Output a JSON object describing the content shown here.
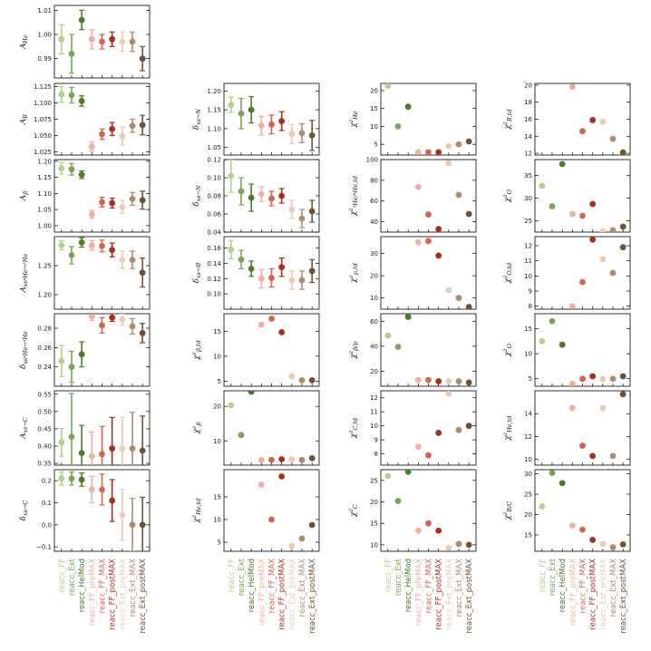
{
  "palette": [
    "#b5cf8e",
    "#7ea35a",
    "#4d7a2b",
    "#ebb1a3",
    "#d16452",
    "#a82e22",
    "#e6cdb4",
    "#ad8c6e",
    "#6e5238"
  ],
  "categories": [
    "reacc_FF",
    "reacc_Ext",
    "reacc_HelMod",
    "reacc_FF_preMAX",
    "reacc_FF_MAX",
    "reacc_FF_postMAX",
    "reacc_Ext_preMAX",
    "reacc_Ext_MAX",
    "reacc_Ext_postMAX"
  ],
  "chart_data": [
    {
      "type": "scatter",
      "ylabel": "A_{He}",
      "ylim": [
        0.982,
        1.012
      ],
      "yticks": [
        0.99,
        1.0,
        1.01
      ],
      "yticklabels": [
        "0.99",
        "1.00",
        "1.01"
      ],
      "values": [
        0.998,
        0.992,
        1.006,
        0.998,
        0.997,
        0.998,
        0.997,
        0.997,
        0.99
      ],
      "errors": [
        0.006,
        0.008,
        0.004,
        0.004,
        0.003,
        0.003,
        0.004,
        0.004,
        0.005
      ]
    },
    {
      "type": "scatter",
      "ylabel": "A_{B}",
      "ylim": [
        1.02,
        1.13
      ],
      "yticks": [
        1.025,
        1.05,
        1.075,
        1.1,
        1.125
      ],
      "yticklabels": [
        "1.025",
        "1.050",
        "1.075",
        "1.100",
        "1.125"
      ],
      "values": [
        1.113,
        1.112,
        1.103,
        1.033,
        1.052,
        1.06,
        1.049,
        1.065,
        1.066
      ],
      "errors": [
        0.012,
        0.012,
        0.008,
        0.007,
        0.008,
        0.01,
        0.014,
        0.01,
        0.015
      ]
    },
    {
      "type": "scatter",
      "ylabel": "A_{p̄}",
      "ylim": [
        0.98,
        1.205
      ],
      "yticks": [
        1.0,
        1.05,
        1.1,
        1.15,
        1.2
      ],
      "yticklabels": [
        "1.00",
        "1.05",
        "1.10",
        "1.15",
        "1.20"
      ],
      "values": [
        1.178,
        1.175,
        1.158,
        1.035,
        1.073,
        1.07,
        1.058,
        1.083,
        1.079
      ],
      "errors": [
        0.018,
        0.018,
        0.012,
        0.012,
        0.015,
        0.015,
        0.02,
        0.02,
        0.028
      ]
    },
    {
      "type": "scatter",
      "ylabel": "A_{xs⁴He→³He}",
      "ylim": [
        1.175,
        1.3
      ],
      "yticks": [
        1.2,
        1.25
      ],
      "yticklabels": [
        "1.20",
        "1.25"
      ],
      "values": [
        1.285,
        1.268,
        1.29,
        1.285,
        1.284,
        1.277,
        1.26,
        1.26,
        1.238
      ],
      "errors": [
        0.008,
        0.015,
        0.008,
        0.008,
        0.01,
        0.012,
        0.015,
        0.015,
        0.025
      ]
    },
    {
      "type": "scatter",
      "ylabel": "δ_{xs⁴He→³He}",
      "ylim": [
        0.22,
        0.295
      ],
      "yticks": [
        0.24,
        0.26,
        0.28
      ],
      "yticklabels": [
        "0.24",
        "0.26",
        "0.28"
      ],
      "values": [
        0.246,
        0.24,
        0.253,
        0.292,
        0.283,
        0.291,
        0.289,
        0.282,
        0.275
      ],
      "errors": [
        0.016,
        0.016,
        0.013,
        0.004,
        0.008,
        0.004,
        0.006,
        0.008,
        0.01
      ]
    },
    {
      "type": "scatter",
      "ylabel": "A_{xs→C}",
      "ylim": [
        0.345,
        0.56
      ],
      "yticks": [
        0.35,
        0.4,
        0.45,
        0.5,
        0.55
      ],
      "yticklabels": [
        "0.35",
        "0.40",
        "0.45",
        "0.50",
        "0.55"
      ],
      "values": [
        0.411,
        0.427,
        0.38,
        0.371,
        0.377,
        0.393,
        0.393,
        0.393,
        0.387
      ],
      "errors": [
        0.04,
        0.125,
        0.08,
        0.07,
        0.08,
        0.09,
        0.09,
        0.105,
        0.1
      ]
    },
    {
      "type": "scatter",
      "ylabel": "δ_{xs→C}",
      "ylim": [
        -0.12,
        0.25
      ],
      "yticks": [
        -0.1,
        0.0,
        0.1,
        0.2
      ],
      "yticklabels": [
        "−0.1",
        "0.0",
        "0.1",
        "0.2"
      ],
      "values": [
        0.21,
        0.21,
        0.205,
        0.16,
        0.16,
        0.11,
        0.045,
        0.0,
        0.0
      ],
      "errors": [
        0.03,
        0.03,
        0.03,
        0.06,
        0.07,
        0.095,
        0.115,
        0.12,
        0.125
      ]
    },
    null,
    {
      "type": "scatter",
      "ylabel": "δ_{xs→N}",
      "ylim": [
        1.03,
        1.22
      ],
      "yticks": [
        1.05,
        1.1,
        1.15,
        1.2
      ],
      "yticklabels": [
        "1.05",
        "1.10",
        "1.15",
        "1.20"
      ],
      "values": [
        1.163,
        1.14,
        1.15,
        1.108,
        1.111,
        1.12,
        1.086,
        1.088,
        1.082
      ],
      "errors": [
        0.02,
        0.04,
        0.035,
        0.025,
        0.025,
        0.025,
        0.025,
        0.025,
        0.04
      ]
    },
    {
      "type": "scatter",
      "ylabel": "δ_{xs→N}",
      "ylim": [
        0.04,
        0.12
      ],
      "yticks": [
        0.04,
        0.06,
        0.08,
        0.1,
        0.12
      ],
      "yticklabels": [
        "0.04",
        "0.06",
        "0.08",
        "0.10",
        "0.12"
      ],
      "values": [
        0.102,
        0.085,
        0.078,
        0.082,
        0.077,
        0.08,
        0.065,
        0.055,
        0.063
      ],
      "errors": [
        0.018,
        0.015,
        0.015,
        0.008,
        0.008,
        0.008,
        0.01,
        0.01,
        0.012
      ]
    },
    {
      "type": "scatter",
      "ylabel": "δ_{xs→B}",
      "ylim": [
        0.08,
        0.175
      ],
      "yticks": [
        0.1,
        0.12,
        0.14,
        0.16
      ],
      "yticklabels": [
        "0.10",
        "0.12",
        "0.14",
        "0.16"
      ],
      "values": [
        0.158,
        0.145,
        0.133,
        0.12,
        0.121,
        0.135,
        0.118,
        0.118,
        0.13
      ],
      "errors": [
        0.012,
        0.012,
        0.01,
        0.012,
        0.012,
        0.012,
        0.012,
        0.012,
        0.015
      ]
    },
    {
      "type": "scatter",
      "ylabel": "χ²_{p̄,td}",
      "ylim": [
        4,
        18.5
      ],
      "yticks": [
        5,
        10,
        15
      ],
      "yticklabels": [
        "5",
        "10",
        "15"
      ],
      "values": [
        null,
        null,
        null,
        16.3,
        17.5,
        14.8,
        6.0,
        5.2,
        5.2
      ],
      "errors": null
    },
    {
      "type": "scatter",
      "ylabel": "χ²_{p̄}",
      "ylim": [
        3,
        24.5
      ],
      "yticks": [
        10,
        20
      ],
      "yticklabels": [
        "10",
        "20"
      ],
      "values": [
        20.3,
        11.7,
        24.2,
        4.5,
        4.5,
        4.7,
        4.7,
        4.5,
        5.0
      ],
      "errors": null
    },
    {
      "type": "scatter",
      "ylabel": "χ²_{He,td}",
      "ylim": [
        3,
        21
      ],
      "yticks": [
        5,
        10,
        15
      ],
      "yticklabels": [
        "5",
        "10",
        "15"
      ],
      "values": [
        null,
        null,
        null,
        17.7,
        10.0,
        19.5,
        4.2,
        5.8,
        8.8
      ],
      "errors": null
    },
    null,
    {
      "type": "scatter",
      "ylabel": "χ²_{He}",
      "ylim": [
        2,
        22
      ],
      "yticks": [
        5,
        10,
        15,
        20
      ],
      "yticklabels": [
        "5",
        "10",
        "15",
        "20"
      ],
      "values": [
        21.3,
        10.0,
        15.5,
        2.8,
        2.8,
        2.8,
        4.5,
        5.0,
        5.8
      ],
      "errors": null
    },
    {
      "type": "scatter",
      "ylabel": "χ²_{³He/⁴He,td}",
      "ylim": [
        30,
        100
      ],
      "yticks": [
        40,
        60,
        80,
        100
      ],
      "yticklabels": [
        "40",
        "60",
        "80",
        "100"
      ],
      "values": [
        null,
        null,
        null,
        73.5,
        47.0,
        33.0,
        96.5,
        66.0,
        47.5
      ],
      "errors": null
    },
    {
      "type": "scatter",
      "ylabel": "χ²_{p,td}",
      "ylim": [
        5,
        37.5
      ],
      "yticks": [
        10,
        20,
        30
      ],
      "yticklabels": [
        "10",
        "20",
        "30"
      ],
      "values": [
        null,
        null,
        null,
        35.0,
        35.5,
        29.0,
        13.5,
        10.0,
        6.0
      ],
      "errors": null
    },
    {
      "type": "scatter",
      "ylabel": "χ²_{p̄/p}",
      "ylim": [
        8,
        66
      ],
      "yticks": [
        20,
        40,
        60
      ],
      "yticklabels": [
        "20",
        "40",
        "60"
      ],
      "values": [
        48.5,
        39.5,
        63.5,
        13.0,
        13.0,
        12.0,
        12.0,
        12.0,
        11.0
      ],
      "errors": null
    },
    {
      "type": "scatter",
      "ylabel": "χ²_{C,td}",
      "ylim": [
        7.2,
        12.5
      ],
      "yticks": [
        8,
        9,
        10,
        11,
        12
      ],
      "yticklabels": [
        "8",
        "9",
        "10",
        "11",
        "12"
      ],
      "values": [
        null,
        null,
        null,
        8.5,
        7.9,
        9.5,
        12.3,
        9.7,
        10.0
      ],
      "errors": null
    },
    {
      "type": "scatter",
      "ylabel": "χ²_{C}",
      "ylim": [
        8.5,
        27.5
      ],
      "yticks": [
        10,
        15,
        20,
        25
      ],
      "yticklabels": [
        "10",
        "15",
        "20",
        "25"
      ],
      "values": [
        26.0,
        20.2,
        27.0,
        13.3,
        15.0,
        13.3,
        9.3,
        10.2,
        10.0
      ],
      "errors": null
    },
    null,
    {
      "type": "scatter",
      "ylabel": "χ²_{B,td}",
      "ylim": [
        11.8,
        20.2
      ],
      "yticks": [
        12,
        14,
        16,
        18,
        20
      ],
      "yticklabels": [
        "12",
        "14",
        "16",
        "18",
        "20"
      ],
      "values": [
        null,
        null,
        null,
        19.8,
        14.6,
        15.9,
        15.7,
        13.7,
        12.1
      ],
      "errors": null
    },
    {
      "type": "scatter",
      "ylabel": "χ²_{O}",
      "ylim": [
        22.5,
        38.5
      ],
      "yticks": [
        25,
        30,
        35
      ],
      "yticklabels": [
        "25",
        "30",
        "35"
      ],
      "values": [
        32.7,
        28.2,
        37.5,
        26.5,
        26.1,
        28.7,
        22.7,
        22.9,
        23.7
      ],
      "errors": null
    },
    {
      "type": "scatter",
      "ylabel": "χ²_{O,td}",
      "ylim": [
        7.8,
        12.6
      ],
      "yticks": [
        8,
        9,
        10,
        11,
        12
      ],
      "yticklabels": [
        "8",
        "9",
        "10",
        "11",
        "12"
      ],
      "values": [
        null,
        null,
        null,
        8.0,
        9.6,
        12.4,
        11.1,
        10.2,
        11.9
      ],
      "errors": null
    },
    {
      "type": "scatter",
      "ylabel": "χ²_{O}",
      "ylim": [
        3.5,
        18
      ],
      "yticks": [
        5,
        10,
        15
      ],
      "yticklabels": [
        "5",
        "10",
        "15"
      ],
      "values": [
        12.5,
        16.5,
        11.8,
        4.0,
        5.0,
        5.5,
        5.0,
        5.0,
        5.5
      ],
      "errors": null
    },
    {
      "type": "scatter",
      "ylabel": "χ²_{He,td}",
      "ylim": [
        9.5,
        16
      ],
      "yticks": [
        10,
        12,
        14
      ],
      "yticklabels": [
        "10",
        "12",
        "14"
      ],
      "values": [
        null,
        null,
        null,
        14.5,
        11.2,
        10.3,
        14.5,
        10.3,
        15.7
      ],
      "errors": null
    },
    {
      "type": "scatter",
      "ylabel": "χ²_{B/C}",
      "ylim": [
        11,
        31
      ],
      "yticks": [
        15,
        20,
        25,
        30
      ],
      "yticklabels": [
        "15",
        "20",
        "25",
        "30"
      ],
      "values": [
        22.0,
        30.2,
        27.7,
        17.3,
        16.3,
        13.8,
        12.8,
        12.0,
        12.7
      ],
      "errors": null
    }
  ]
}
